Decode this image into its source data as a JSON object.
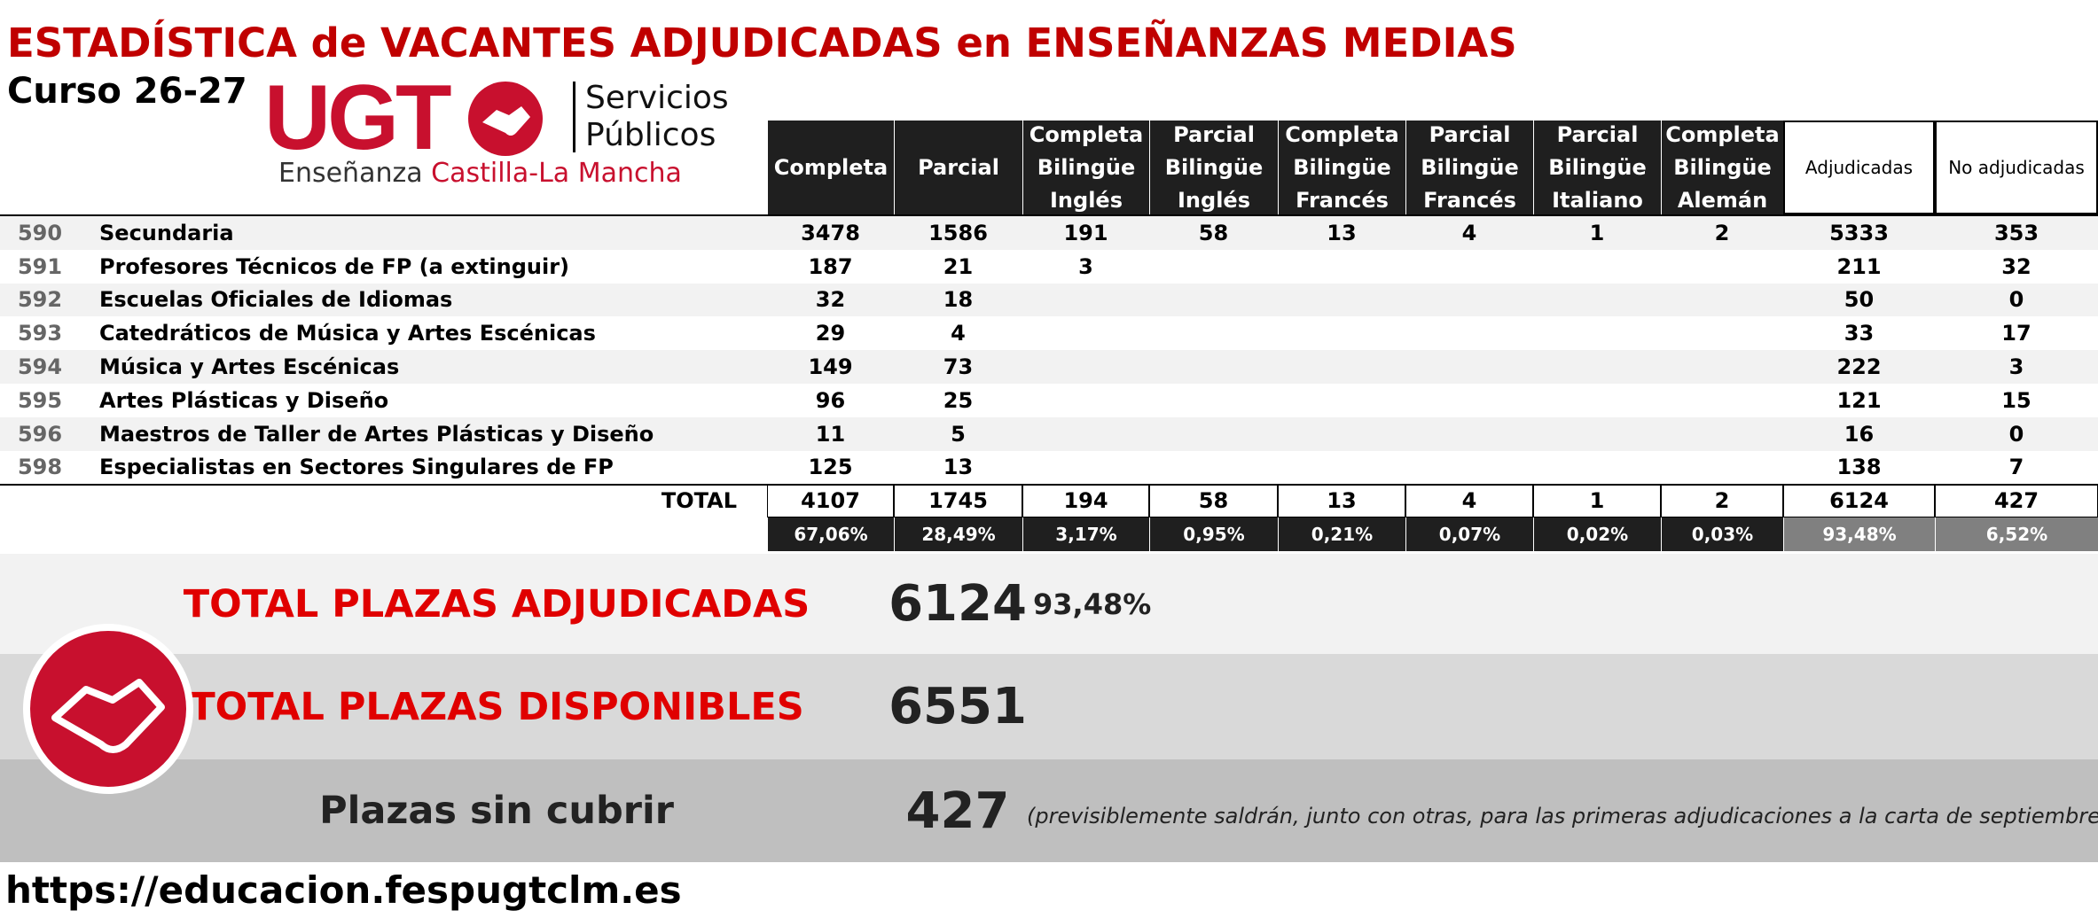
{
  "title": "ESTADÍSTICA de VACANTES ADJUDICADAS en ENSEÑANZAS MEDIAS",
  "subtitle": "Curso 26-27",
  "logo": {
    "brand": "UGT",
    "line1": "Servicios",
    "line2": "Públicos",
    "tagline1": "Enseñanza",
    "tagline2": "Castilla-La Mancha"
  },
  "table": {
    "headers": [
      [
        "Completa"
      ],
      [
        "Parcial"
      ],
      [
        "Completa",
        "Bilingüe",
        "Inglés"
      ],
      [
        "Parcial",
        "Bilingüe",
        "Inglés"
      ],
      [
        "Completa",
        "Bilingüe",
        "Francés"
      ],
      [
        "Parcial",
        "Bilingüe",
        "Francés"
      ],
      [
        "Parcial",
        "Bilingüe",
        "Italiano"
      ],
      [
        "Completa",
        "Bilingüe",
        "Alemán"
      ],
      [
        "Adjudicadas"
      ],
      [
        "No adjudicadas"
      ]
    ],
    "rows": [
      {
        "code": "590",
        "name": "Secundaria",
        "cells": [
          3478,
          1586,
          191,
          58,
          13,
          4,
          1,
          2,
          5333,
          353
        ]
      },
      {
        "code": "591",
        "name": "Profesores Técnicos de FP (a extinguir)",
        "cells": [
          187,
          21,
          3,
          null,
          null,
          null,
          null,
          null,
          211,
          32
        ]
      },
      {
        "code": "592",
        "name": "Escuelas Oficiales de Idiomas",
        "cells": [
          32,
          18,
          null,
          null,
          null,
          null,
          null,
          null,
          50,
          0
        ]
      },
      {
        "code": "593",
        "name": "Catedráticos de Música y Artes Escénicas",
        "cells": [
          29,
          4,
          null,
          null,
          null,
          null,
          null,
          null,
          33,
          17
        ]
      },
      {
        "code": "594",
        "name": "Música y Artes Escénicas",
        "cells": [
          149,
          73,
          null,
          null,
          null,
          null,
          null,
          null,
          222,
          3
        ]
      },
      {
        "code": "595",
        "name": "Artes Plásticas y Diseño",
        "cells": [
          96,
          25,
          null,
          null,
          null,
          null,
          null,
          null,
          121,
          15
        ]
      },
      {
        "code": "596",
        "name": "Maestros de Taller de Artes Plásticas y Diseño",
        "cells": [
          11,
          5,
          null,
          null,
          null,
          null,
          null,
          null,
          16,
          0
        ]
      },
      {
        "code": "598",
        "name": "Especialistas en Sectores Singulares de FP",
        "cells": [
          125,
          13,
          null,
          null,
          null,
          null,
          null,
          null,
          138,
          7
        ]
      }
    ],
    "total": {
      "label": "TOTAL",
      "cells": [
        4107,
        1745,
        194,
        58,
        13,
        4,
        1,
        2,
        6124,
        427
      ]
    },
    "percentages": [
      "67,06%",
      "28,49%",
      "3,17%",
      "0,95%",
      "0,21%",
      "0,07%",
      "0,02%",
      "0,03%",
      "93,48%",
      "6,52%"
    ]
  },
  "summary": [
    {
      "label": "TOTAL PLAZAS ADJUDICADAS",
      "value": 6124,
      "extra": "93,48%"
    },
    {
      "label": "TOTAL PLAZAS DISPONIBLES",
      "value": 6551
    },
    {
      "label": "Plazas sin cubrir",
      "value": 427,
      "note": "(previsiblemente saldrán, junto con otras, para las primeras adjudicaciones a la carta de septiembre)"
    }
  ],
  "url": "https://educacion.fespugtclm.es"
}
